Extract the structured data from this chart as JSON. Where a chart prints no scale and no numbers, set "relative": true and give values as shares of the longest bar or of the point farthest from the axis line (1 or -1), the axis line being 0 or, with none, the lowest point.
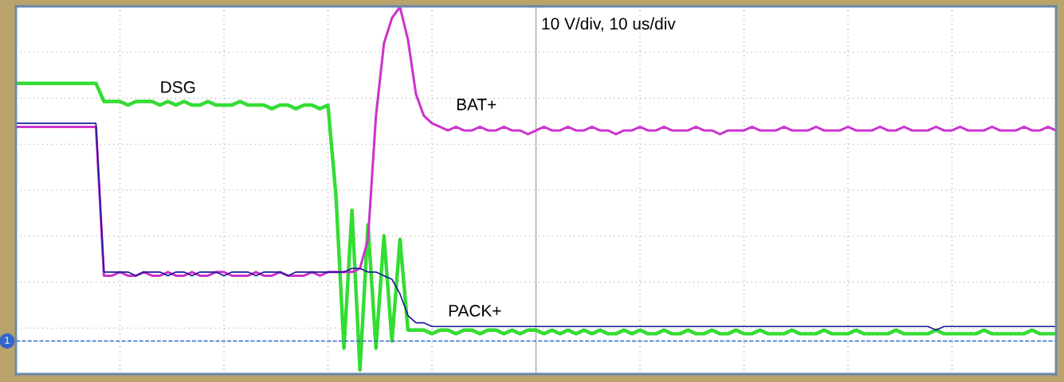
{
  "chart_data": {
    "type": "line",
    "relative": true,
    "grid": true,
    "marker": "none",
    "line_style": "solid",
    "legend": false,
    "tick_labels": false,
    "annotations": [
      "10 V/div, 10 us/div",
      {
        "text": "1",
        "y": 0.08
      }
    ],
    "ref_lines": [
      {
        "axis": "y",
        "value": 0.08,
        "color": "#3366cc",
        "line_style": "dashed"
      }
    ],
    "categories": [
      null,
      null,
      null,
      null,
      null,
      null,
      null,
      null,
      null,
      null,
      null,
      null,
      null,
      null,
      null,
      null,
      null,
      null,
      null,
      null,
      null,
      null,
      null,
      null,
      null,
      null,
      null,
      null,
      null,
      null,
      null,
      null,
      null,
      null,
      null,
      null,
      null,
      null,
      null,
      null,
      null,
      null,
      null,
      null,
      null,
      null,
      null,
      null,
      null,
      null,
      null,
      null,
      null,
      null,
      null,
      null,
      null,
      null,
      null,
      null,
      null,
      null,
      null,
      null,
      null,
      null,
      null,
      null,
      null,
      null,
      null,
      null,
      null,
      null,
      null,
      null,
      null,
      null,
      null,
      null,
      null,
      null,
      null,
      null,
      null,
      null,
      null,
      null,
      null,
      null,
      null,
      null,
      null,
      null,
      null,
      null,
      null,
      null,
      null,
      null,
      null,
      null,
      null,
      null,
      null,
      null,
      null,
      null,
      null,
      null,
      null,
      null,
      null,
      null,
      null,
      null,
      null,
      null,
      null,
      null,
      null,
      null,
      null,
      null,
      null,
      null,
      null,
      null,
      null,
      null,
      null
    ],
    "series": [
      {
        "name": "DSG",
        "color": "#33dd33",
        "values": [
          0.79,
          0.79,
          0.79,
          0.79,
          0.79,
          0.79,
          0.79,
          0.79,
          0.79,
          0.79,
          0.79,
          0.74,
          0.74,
          0.74,
          0.73,
          0.74,
          0.74,
          0.74,
          0.73,
          0.74,
          0.73,
          0.74,
          0.73,
          0.73,
          0.74,
          0.73,
          0.73,
          0.73,
          0.74,
          0.73,
          0.73,
          0.73,
          0.72,
          0.73,
          0.73,
          0.72,
          0.73,
          0.73,
          0.72,
          0.73,
          0.48,
          0.06,
          0.44,
          0.0,
          0.4,
          0.06,
          0.37,
          0.08,
          0.36,
          0.11,
          0.11,
          0.11,
          0.1,
          0.11,
          0.11,
          0.1,
          0.11,
          0.11,
          0.1,
          0.11,
          0.11,
          0.1,
          0.11,
          0.1,
          0.11,
          0.11,
          0.1,
          0.11,
          0.1,
          0.11,
          0.1,
          0.11,
          0.1,
          0.11,
          0.1,
          0.1,
          0.11,
          0.1,
          0.11,
          0.1,
          0.1,
          0.11,
          0.1,
          0.1,
          0.11,
          0.1,
          0.1,
          0.11,
          0.1,
          0.1,
          0.11,
          0.1,
          0.1,
          0.11,
          0.1,
          0.1,
          0.1,
          0.11,
          0.1,
          0.1,
          0.1,
          0.11,
          0.1,
          0.1,
          0.1,
          0.11,
          0.1,
          0.1,
          0.1,
          0.1,
          0.11,
          0.1,
          0.1,
          0.1,
          0.1,
          0.11,
          0.1,
          0.1,
          0.1,
          0.1,
          0.1,
          0.11,
          0.1,
          0.1,
          0.1,
          0.1,
          0.1,
          0.11,
          0.1,
          0.1,
          0.1
        ]
      },
      {
        "name": "BAT+",
        "color": "#cc33cc",
        "values": [
          0.67,
          0.67,
          0.67,
          0.67,
          0.67,
          0.67,
          0.67,
          0.67,
          0.67,
          0.67,
          0.67,
          0.26,
          0.26,
          0.27,
          0.26,
          0.26,
          0.27,
          0.26,
          0.26,
          0.27,
          0.26,
          0.26,
          0.27,
          0.26,
          0.26,
          0.27,
          0.27,
          0.26,
          0.26,
          0.26,
          0.27,
          0.26,
          0.26,
          0.27,
          0.26,
          0.26,
          0.26,
          0.27,
          0.26,
          0.27,
          0.27,
          0.27,
          0.27,
          0.28,
          0.36,
          0.7,
          0.9,
          0.97,
          1.0,
          0.91,
          0.76,
          0.7,
          0.68,
          0.67,
          0.66,
          0.67,
          0.66,
          0.66,
          0.67,
          0.66,
          0.66,
          0.67,
          0.66,
          0.66,
          0.65,
          0.66,
          0.67,
          0.66,
          0.66,
          0.67,
          0.66,
          0.66,
          0.67,
          0.66,
          0.66,
          0.65,
          0.66,
          0.66,
          0.67,
          0.66,
          0.66,
          0.67,
          0.66,
          0.66,
          0.66,
          0.67,
          0.66,
          0.66,
          0.65,
          0.66,
          0.66,
          0.66,
          0.67,
          0.66,
          0.66,
          0.66,
          0.67,
          0.66,
          0.66,
          0.66,
          0.67,
          0.66,
          0.66,
          0.66,
          0.67,
          0.66,
          0.66,
          0.66,
          0.67,
          0.66,
          0.66,
          0.67,
          0.66,
          0.66,
          0.66,
          0.67,
          0.66,
          0.66,
          0.67,
          0.66,
          0.66,
          0.66,
          0.67,
          0.66,
          0.66,
          0.66,
          0.67,
          0.66,
          0.66,
          0.67,
          0.66
        ]
      },
      {
        "name": "PACK+",
        "color": "#1a1a99",
        "values": [
          0.68,
          0.68,
          0.68,
          0.68,
          0.68,
          0.68,
          0.68,
          0.68,
          0.68,
          0.68,
          0.68,
          0.27,
          0.27,
          0.27,
          0.27,
          0.26,
          0.27,
          0.27,
          0.27,
          0.26,
          0.27,
          0.27,
          0.26,
          0.27,
          0.27,
          0.27,
          0.26,
          0.27,
          0.27,
          0.27,
          0.26,
          0.27,
          0.27,
          0.27,
          0.26,
          0.27,
          0.27,
          0.27,
          0.27,
          0.27,
          0.27,
          0.27,
          0.28,
          0.28,
          0.27,
          0.27,
          0.26,
          0.25,
          0.21,
          0.15,
          0.13,
          0.13,
          0.12,
          0.12,
          0.12,
          0.12,
          0.12,
          0.12,
          0.12,
          0.12,
          0.12,
          0.12,
          0.12,
          0.12,
          0.12,
          0.12,
          0.12,
          0.12,
          0.12,
          0.12,
          0.12,
          0.12,
          0.12,
          0.12,
          0.12,
          0.12,
          0.12,
          0.12,
          0.12,
          0.12,
          0.12,
          0.12,
          0.12,
          0.12,
          0.12,
          0.12,
          0.12,
          0.12,
          0.12,
          0.12,
          0.12,
          0.12,
          0.12,
          0.12,
          0.12,
          0.12,
          0.12,
          0.12,
          0.12,
          0.12,
          0.12,
          0.12,
          0.12,
          0.12,
          0.12,
          0.12,
          0.12,
          0.12,
          0.12,
          0.12,
          0.12,
          0.12,
          0.12,
          0.12,
          0.12,
          0.11,
          0.12,
          0.12,
          0.12,
          0.12,
          0.12,
          0.12,
          0.12,
          0.12,
          0.12,
          0.12,
          0.12,
          0.12,
          0.12,
          0.12,
          0.12
        ]
      }
    ]
  }
}
